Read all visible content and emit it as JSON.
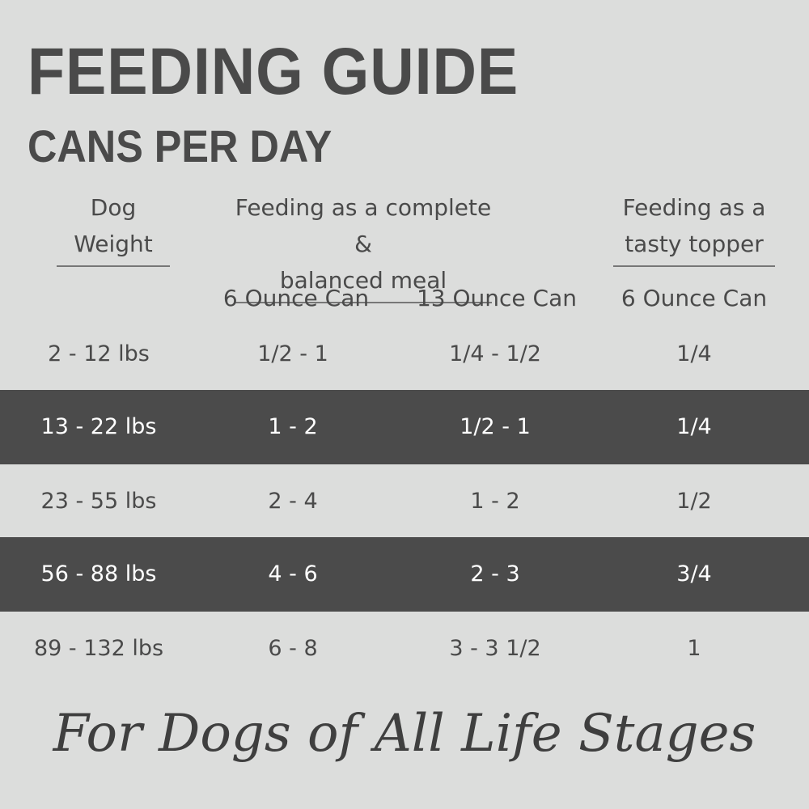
{
  "title": "FEEDING GUIDE",
  "subtitle": "CANS PER DAY",
  "table": {
    "group_headers": [
      "Dog\nWeight",
      "Feeding as a complete &\nbalanced meal",
      "Feeding as a\ntasty topper"
    ],
    "sub_headers": [
      "6 Ounce Can",
      "13 Ounce Can",
      "6 Ounce Can"
    ],
    "rows": [
      [
        "2 - 12 lbs",
        "1/2 - 1",
        "1/4 - 1/2",
        "1/4"
      ],
      [
        "13 - 22 lbs",
        "1 - 2",
        "1/2 - 1",
        "1/4"
      ],
      [
        "23 - 55 lbs",
        "2 - 4",
        "1 - 2",
        "1/2"
      ],
      [
        "56 - 88 lbs",
        "4 - 6",
        "2 - 3",
        "3/4"
      ],
      [
        "89 - 132 lbs",
        "6 - 8",
        "3 - 3 1/2",
        "1"
      ]
    ]
  },
  "footer": "For Dogs of All Life Stages"
}
